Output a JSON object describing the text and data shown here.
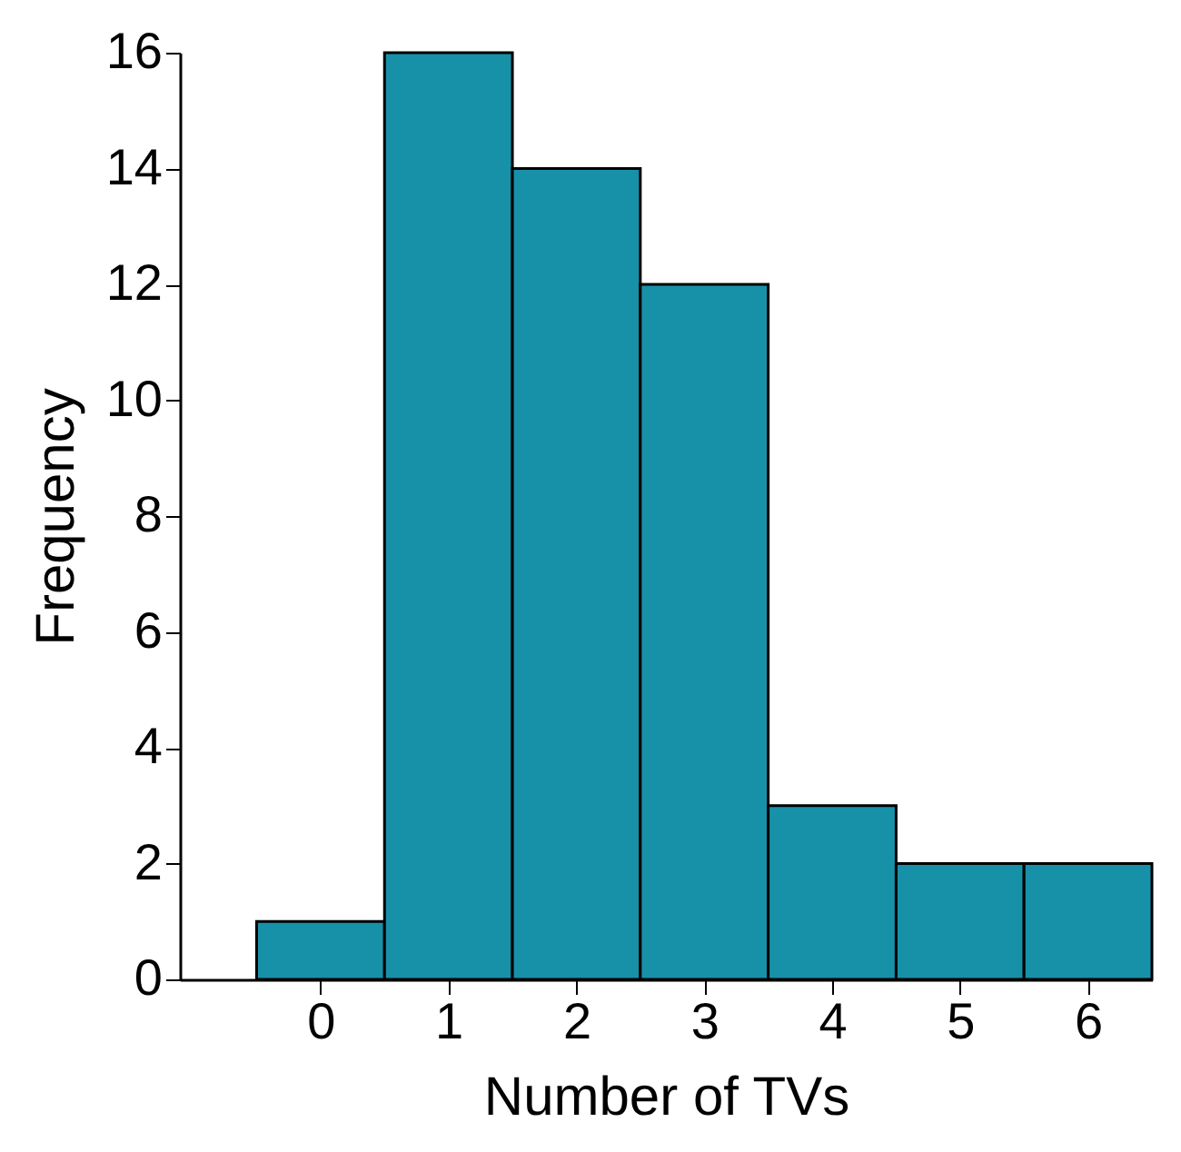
{
  "chart_data": {
    "type": "histogram",
    "xlabel": "Number of TVs",
    "ylabel": "Frequency",
    "bins": [
      -0.5,
      0.5,
      1.5,
      2.5,
      3.5,
      4.5,
      5.5,
      6.5
    ],
    "values": [
      1,
      16,
      14,
      12,
      3,
      2,
      2
    ],
    "color": "#1791a8",
    "xlim": [
      -1.1,
      6.5
    ],
    "xticks": [
      0,
      1,
      2,
      3,
      4,
      5,
      6
    ],
    "ylim": [
      0,
      16
    ],
    "yticks": [
      0,
      2,
      4,
      6,
      8,
      10,
      12,
      14,
      16
    ],
    "grid": false
  }
}
